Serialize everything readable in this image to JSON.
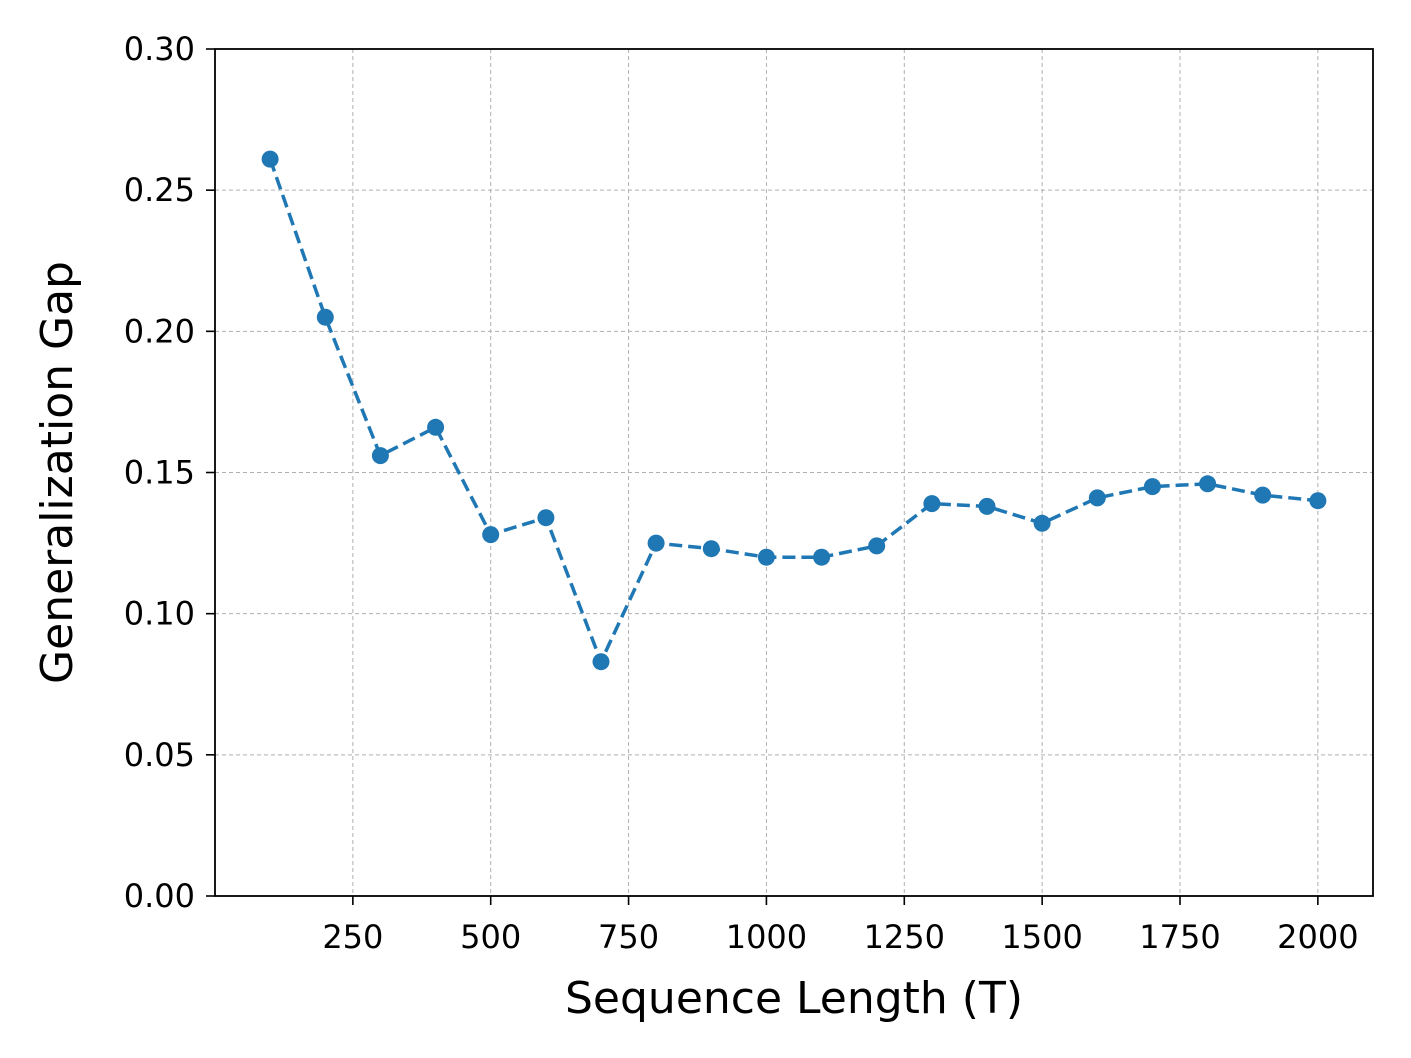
{
  "chart_data": {
    "type": "line",
    "xlabel": "Sequence Length (T)",
    "ylabel": "Generalization Gap",
    "xlim": [
      0,
      2100
    ],
    "ylim": [
      0.0,
      0.3
    ],
    "xticks": [
      250,
      500,
      750,
      1000,
      1250,
      1500,
      1750,
      2000
    ],
    "xtick_labels": [
      "250",
      "500",
      "750",
      "1000",
      "1250",
      "1500",
      "1750",
      "2000"
    ],
    "yticks": [
      0.0,
      0.05,
      0.1,
      0.15,
      0.2,
      0.25,
      0.3
    ],
    "ytick_labels": [
      "0.00",
      "0.05",
      "0.10",
      "0.15",
      "0.20",
      "0.25",
      "0.30"
    ],
    "grid": true,
    "series": [
      {
        "color": "#1f77b4",
        "line_style": "dashed",
        "marker": "circle",
        "x": [
          100,
          200,
          300,
          400,
          500,
          600,
          700,
          800,
          900,
          1000,
          1100,
          1200,
          1300,
          1400,
          1500,
          1600,
          1700,
          1800,
          1900,
          2000
        ],
        "y": [
          0.261,
          0.205,
          0.156,
          0.166,
          0.128,
          0.134,
          0.083,
          0.125,
          0.123,
          0.12,
          0.12,
          0.124,
          0.139,
          0.138,
          0.132,
          0.141,
          0.145,
          0.146,
          0.142,
          0.14
        ]
      }
    ]
  }
}
